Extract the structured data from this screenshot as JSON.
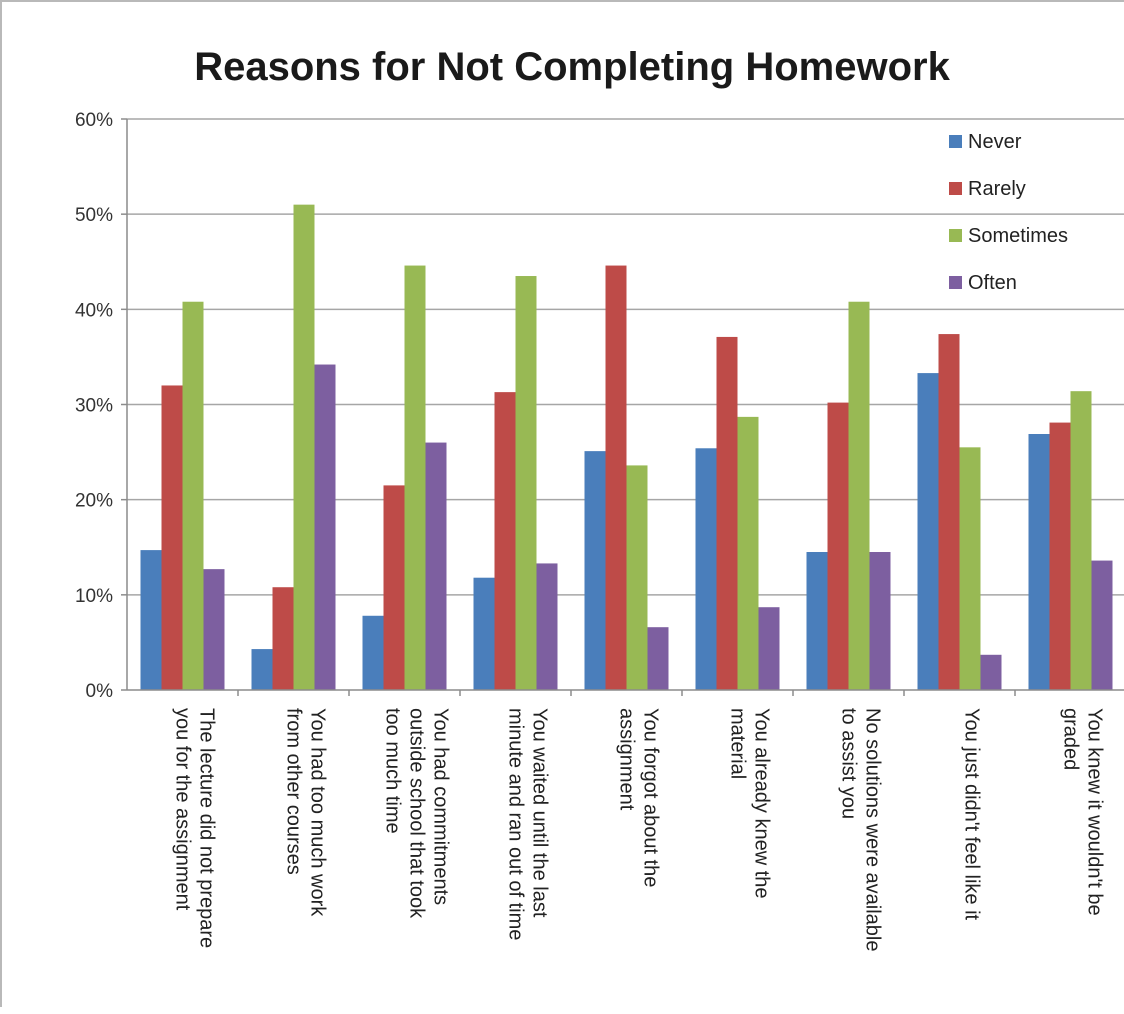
{
  "chart_data": {
    "type": "bar",
    "title": "Reasons for Not Completing Homework",
    "xlabel": "",
    "ylabel": "",
    "ylim": [
      0,
      60
    ],
    "yticks": [
      "0%",
      "10%",
      "20%",
      "30%",
      "40%",
      "50%",
      "60%"
    ],
    "grid": true,
    "legend_position": "top-right",
    "categories": [
      [
        "The lecture did not prepare",
        "you for the assignment"
      ],
      [
        "You had too much work",
        "from other courses"
      ],
      [
        "You had commitments",
        "outside school that took",
        "too much time"
      ],
      [
        "You waited until the last",
        "minute and ran out of time"
      ],
      [
        "You forgot about the",
        "assignment"
      ],
      [
        "You already knew the",
        "material"
      ],
      [
        "No solutions were available",
        "to assist you"
      ],
      [
        "You just didn't feel like it"
      ],
      [
        "You knew it wouldn't be",
        "graded"
      ]
    ],
    "series": [
      {
        "name": "Never",
        "color": "#4a7ebb",
        "values": [
          14.7,
          4.3,
          7.8,
          11.8,
          25.1,
          25.4,
          14.5,
          33.3,
          26.9
        ]
      },
      {
        "name": "Rarely",
        "color": "#be4b48",
        "values": [
          32.0,
          10.8,
          21.5,
          31.3,
          44.6,
          37.1,
          30.2,
          37.4,
          28.1
        ]
      },
      {
        "name": "Sometimes",
        "color": "#98b954",
        "values": [
          40.8,
          51.0,
          44.6,
          43.5,
          23.6,
          28.7,
          40.8,
          25.5,
          31.4
        ]
      },
      {
        "name": "Often",
        "color": "#7d5fa0",
        "values": [
          12.7,
          34.2,
          26.0,
          13.3,
          6.6,
          8.7,
          14.5,
          3.7,
          13.6
        ]
      }
    ]
  }
}
